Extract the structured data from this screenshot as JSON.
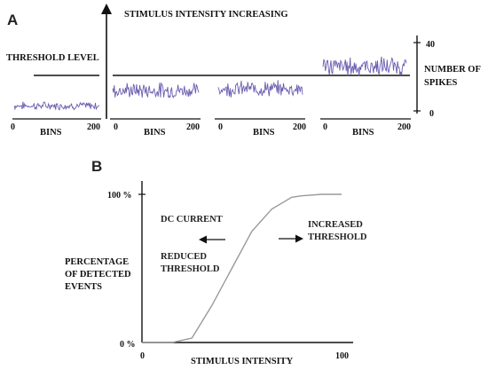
{
  "panel_a": {
    "letter": "A",
    "stimulus_label": "STIMULUS INTENSITY INCREASING",
    "threshold_label": "THRESHOLD LEVEL",
    "spikes_label_line1": "NUMBER OF",
    "spikes_label_line2": "SPIKES",
    "y_top_tick": "40",
    "y_bottom_tick": "0",
    "bins_label": "BINS",
    "x_start_tick": "0",
    "x_end_tick": "200",
    "trace_color": "#6a5cb0",
    "trace_levels_spikes": [
      3,
      12,
      13,
      26
    ]
  },
  "panel_b": {
    "letter": "B",
    "y_top_tick": "100 %",
    "y_bottom_tick": "0 %",
    "y_label_line1": "PERCENTAGE",
    "y_label_line2": "OF DETECTED",
    "y_label_line3": "EVENTS",
    "x_label": "STIMULUS INTENSITY",
    "x_start_tick": "0",
    "x_end_tick": "100",
    "dc_current": "DC CURRENT",
    "reduced_line1": "REDUCED",
    "reduced_line2": "THRESHOLD",
    "increased_line1": "INCREASED",
    "increased_line2": "THRESHOLD",
    "curve_color": "#9a9a9a"
  },
  "chart_data": {
    "type": "line",
    "x": [
      0,
      15,
      25,
      35,
      45,
      55,
      65,
      75,
      80,
      90,
      100
    ],
    "series": [
      {
        "values": [
          0,
          0,
          3,
          25,
          50,
          75,
          90,
          98,
          99,
          100,
          100
        ]
      }
    ],
    "xlim": [
      0,
      100
    ],
    "ylim": [
      0,
      100
    ]
  }
}
